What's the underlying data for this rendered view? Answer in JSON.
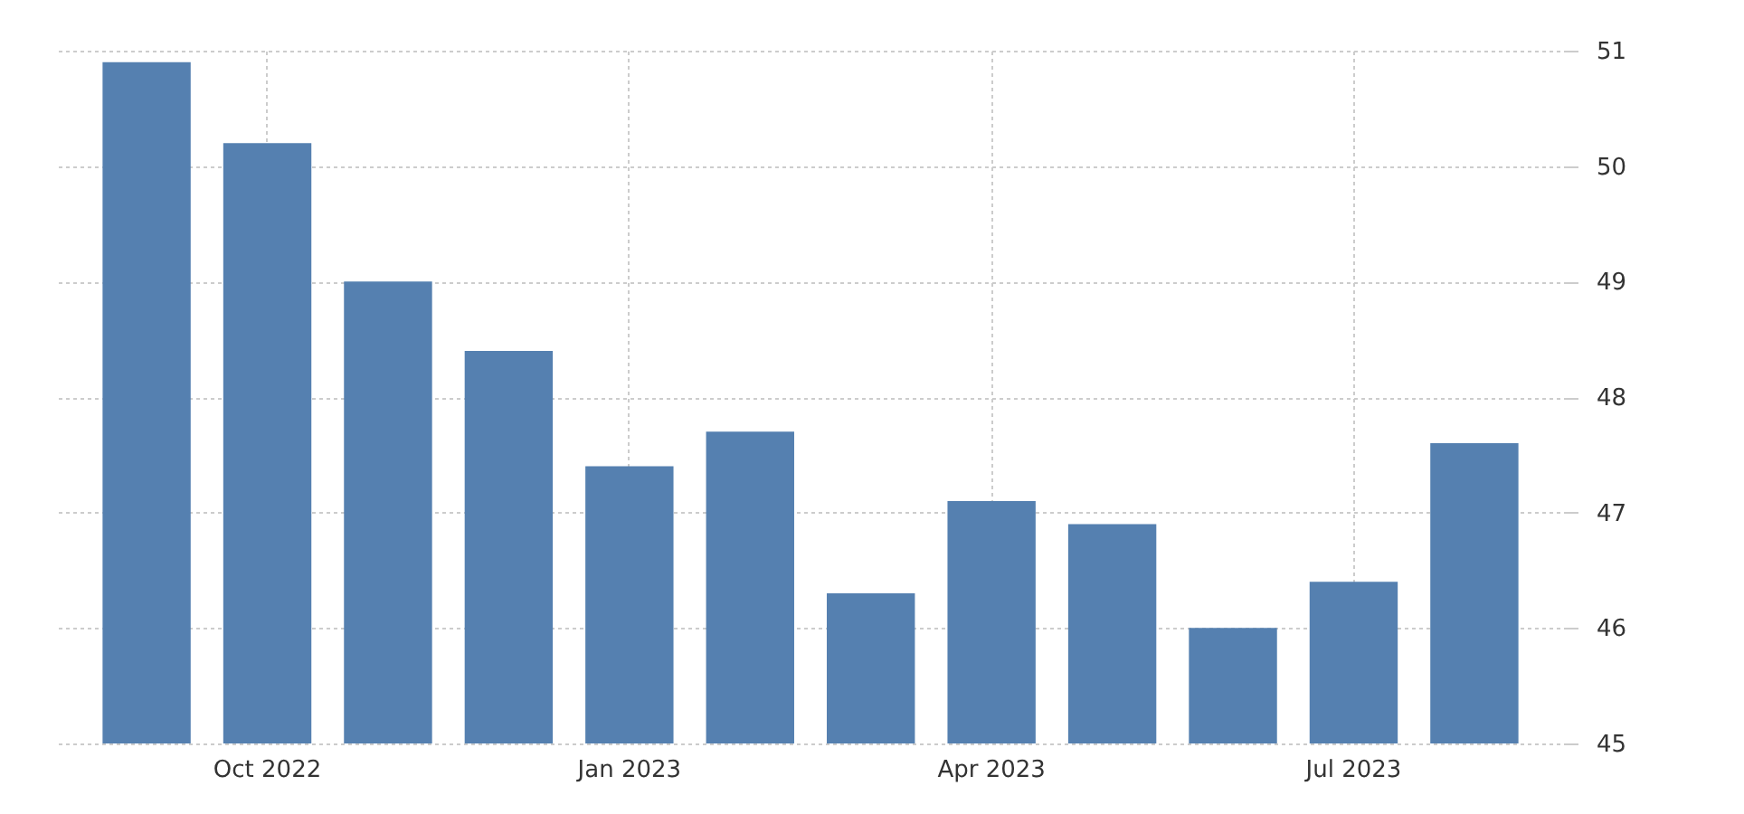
{
  "chart_data": {
    "type": "bar",
    "categories": [
      null,
      "Oct 2022",
      null,
      null,
      "Jan 2023",
      null,
      null,
      "Apr 2023",
      null,
      null,
      "Jul 2023",
      null
    ],
    "values": [
      50.9,
      50.2,
      49.0,
      48.4,
      47.4,
      47.7,
      46.3,
      47.1,
      46.9,
      46.0,
      46.4,
      47.6
    ],
    "color": "#5580b0",
    "ylim": [
      45,
      51
    ],
    "yticks": [
      45,
      46,
      47,
      48,
      49,
      50,
      51
    ],
    "grid": true
  }
}
